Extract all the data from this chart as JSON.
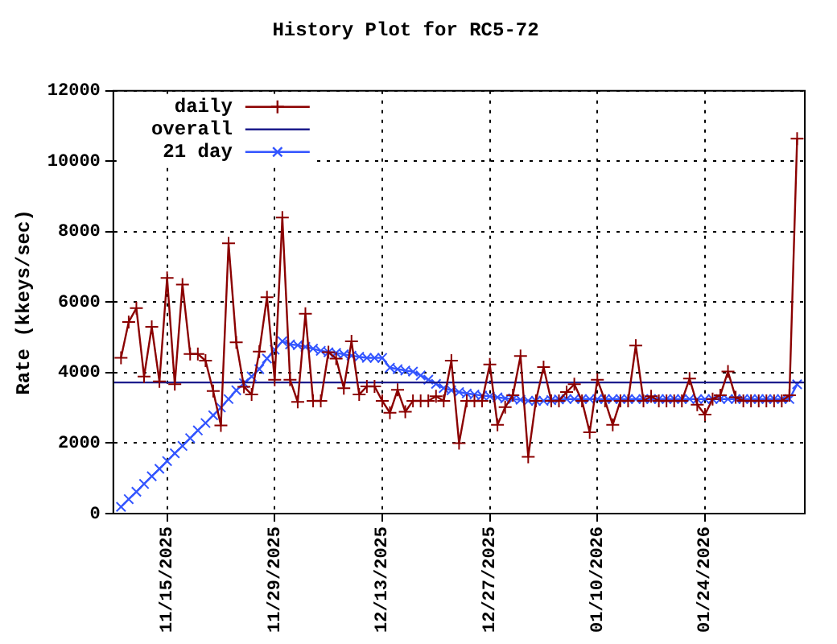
{
  "chart_data": {
    "type": "line",
    "title": "History Plot for RC5-72",
    "ylabel": "Rate (kkeys/sec)",
    "x": [
      "2025-11-09",
      "2025-11-10",
      "2025-11-11",
      "2025-11-12",
      "2025-11-13",
      "2025-11-14",
      "2025-11-15",
      "2025-11-16",
      "2025-11-17",
      "2025-11-18",
      "2025-11-19",
      "2025-11-20",
      "2025-11-21",
      "2025-11-22",
      "2025-11-23",
      "2025-11-24",
      "2025-11-25",
      "2025-11-26",
      "2025-11-27",
      "2025-11-28",
      "2025-11-29",
      "2025-11-30",
      "2025-12-01",
      "2025-12-02",
      "2025-12-03",
      "2025-12-04",
      "2025-12-05",
      "2025-12-06",
      "2025-12-07",
      "2025-12-08",
      "2025-12-09",
      "2025-12-10",
      "2025-12-11",
      "2025-12-12",
      "2025-12-13",
      "2025-12-14",
      "2025-12-15",
      "2025-12-16",
      "2025-12-17",
      "2025-12-18",
      "2025-12-19",
      "2025-12-20",
      "2025-12-21",
      "2025-12-22",
      "2025-12-23",
      "2025-12-24",
      "2025-12-25",
      "2025-12-26",
      "2025-12-27",
      "2025-12-28",
      "2025-12-29",
      "2025-12-30",
      "2025-12-31",
      "2026-01-01",
      "2026-01-02",
      "2026-01-03",
      "2026-01-04",
      "2026-01-05",
      "2026-01-06",
      "2026-01-07",
      "2026-01-08",
      "2026-01-09",
      "2026-01-10",
      "2026-01-11",
      "2026-01-12",
      "2026-01-13",
      "2026-01-14",
      "2026-01-15",
      "2026-01-16",
      "2026-01-17",
      "2026-01-18",
      "2026-01-19",
      "2026-01-20",
      "2026-01-21",
      "2026-01-22",
      "2026-01-23",
      "2026-01-24",
      "2026-01-25",
      "2026-01-26",
      "2026-01-27",
      "2026-01-28",
      "2026-01-29",
      "2026-01-30",
      "2026-01-31",
      "2026-02-01",
      "2026-02-02",
      "2026-02-03",
      "2026-02-04",
      "2026-02-05"
    ],
    "series": [
      {
        "name": "daily",
        "color": "#8b0000",
        "marker": "cross",
        "values": [
          4420,
          5440,
          5830,
          3890,
          5300,
          3750,
          6690,
          3670,
          6500,
          4530,
          4530,
          4340,
          3480,
          2500,
          7670,
          4860,
          3600,
          3380,
          4600,
          6140,
          3800,
          8400,
          3800,
          3170,
          5670,
          3200,
          3200,
          4580,
          4400,
          3560,
          4890,
          3380,
          3610,
          3610,
          3200,
          2860,
          3510,
          2890,
          3200,
          3200,
          3200,
          3330,
          3200,
          4340,
          2000,
          3200,
          3200,
          3200,
          4230,
          2520,
          3020,
          3360,
          4470,
          1610,
          3200,
          4160,
          3200,
          3200,
          3450,
          3670,
          3200,
          2310,
          3800,
          3200,
          2520,
          3200,
          3200,
          4770,
          3200,
          3330,
          3200,
          3200,
          3200,
          3200,
          3830,
          3090,
          2810,
          3250,
          3360,
          4030,
          3300,
          3200,
          3200,
          3200,
          3200,
          3200,
          3200,
          3360,
          10640
        ]
      },
      {
        "name": "overall",
        "color": "#1c1c8c",
        "marker": "none",
        "x": [
          "2025-11-08",
          "2026-02-06"
        ],
        "values": [
          3720,
          3720
        ]
      },
      {
        "name": "21 day",
        "color": "#3355ff",
        "marker": "x",
        "values": [
          190,
          410,
          620,
          840,
          1060,
          1270,
          1490,
          1710,
          1920,
          2140,
          2360,
          2570,
          2790,
          3010,
          3250,
          3500,
          3700,
          3890,
          4100,
          4400,
          4650,
          4890,
          4800,
          4780,
          4730,
          4680,
          4620,
          4580,
          4560,
          4520,
          4480,
          4450,
          4420,
          4420,
          4420,
          4140,
          4100,
          4060,
          4030,
          3920,
          3800,
          3680,
          3560,
          3500,
          3450,
          3410,
          3380,
          3350,
          3330,
          3300,
          3270,
          3250,
          3230,
          3200,
          3200,
          3200,
          3220,
          3240,
          3250,
          3250,
          3250,
          3250,
          3250,
          3250,
          3250,
          3250,
          3250,
          3250,
          3250,
          3250,
          3250,
          3250,
          3250,
          3250,
          3250,
          3250,
          3250,
          3250,
          3250,
          3250,
          3250,
          3250,
          3250,
          3250,
          3250,
          3250,
          3250,
          3250,
          3670
        ]
      }
    ],
    "xlim": [
      "2025-11-08",
      "2026-02-06"
    ],
    "xticks": [
      {
        "value": "2025-11-15",
        "label": "11/15/2025"
      },
      {
        "value": "2025-11-29",
        "label": "11/29/2025"
      },
      {
        "value": "2025-12-13",
        "label": "12/13/2025"
      },
      {
        "value": "2025-12-27",
        "label": "12/27/2025"
      },
      {
        "value": "2026-01-10",
        "label": "01/10/2026"
      },
      {
        "value": "2026-01-24",
        "label": "01/24/2026"
      }
    ],
    "ylim": [
      0,
      12000
    ],
    "yticks": [
      0,
      2000,
      4000,
      6000,
      8000,
      10000,
      12000
    ],
    "grid": true,
    "legend": "top left",
    "line_style": "solid"
  }
}
